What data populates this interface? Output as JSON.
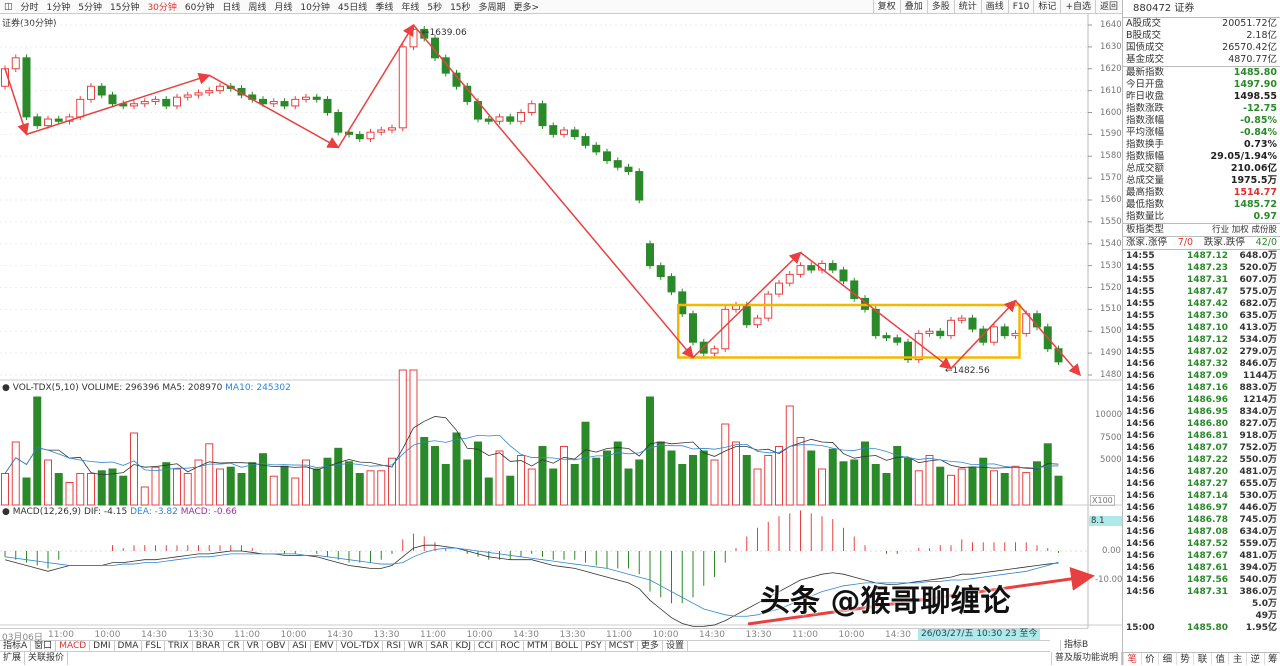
{
  "toolbar": {
    "periods": [
      "分时",
      "1分钟",
      "5分钟",
      "15分钟",
      "30分钟",
      "60分钟",
      "日线",
      "周线",
      "月线",
      "10分钟",
      "45日线",
      "季线",
      "年线",
      "5秒",
      "15秒",
      "多周期",
      "更多>"
    ],
    "active": "30分钟",
    "right": [
      "复权",
      "叠加",
      "多股",
      "统计",
      "画线",
      "F10",
      "标记",
      "+自选",
      "返回"
    ]
  },
  "chart_title": "证券(30分钟)",
  "price_axis": {
    "ticks": [
      1640,
      1630,
      1620,
      1610,
      1600,
      1590,
      1580,
      1570,
      1560,
      1550,
      1540,
      1530,
      1520,
      1510,
      1500,
      1490,
      1480
    ]
  },
  "annotations": {
    "high_label": "1639.06",
    "low_label": "1482.56",
    "colors": {
      "arrow": "#e84040",
      "box": "#f5b800",
      "up": "#e84040",
      "down": "#2a8a2a"
    }
  },
  "volume": {
    "header": "VOL-TDX(5,10) VOLUME: 296396  MA5: 208970",
    "ma10": "MA10: 245302",
    "ticks": [
      "10000",
      "7500",
      "5000"
    ],
    "unit": "X100"
  },
  "macd": {
    "name": "MACD(12,26,9)",
    "dif": "DIF: -4.15",
    "dea": "DEA: -3.82",
    "macd": "MACD: -0.66",
    "ticks": [
      "0.00",
      "-10.00"
    ],
    "cursor_value": "8.1"
  },
  "chart_data": {
    "type": "candlestick",
    "ylim": [
      1480,
      1640
    ],
    "open": [
      1612,
      1620,
      1625,
      1598,
      1594,
      1597,
      1596,
      1598,
      1606,
      1612,
      1608,
      1604,
      1603,
      1604,
      1605,
      1606,
      1603,
      1607,
      1608,
      1609,
      1610,
      1612,
      1611,
      1608,
      1606,
      1604,
      1605,
      1603,
      1606,
      1607,
      1606,
      1600,
      1591,
      1590,
      1588,
      1591,
      1592,
      1593,
      1630,
      1638,
      1634,
      1625,
      1618,
      1612,
      1605,
      1597,
      1596,
      1598,
      1596,
      1600,
      1604,
      1594,
      1590,
      1592,
      1589,
      1585,
      1582,
      1578,
      1575,
      1573,
      1540,
      1530,
      1525,
      1518,
      1508,
      1495,
      1490,
      1492,
      1510,
      1512,
      1503,
      1506,
      1517,
      1522,
      1526,
      1530,
      1528,
      1531,
      1528,
      1523,
      1515,
      1510,
      1498,
      1497,
      1495,
      1487,
      1499,
      1500,
      1498,
      1505,
      1506,
      1501,
      1495,
      1502,
      1498,
      1499,
      1508,
      1502,
      1492
    ],
    "close": [
      1620,
      1625,
      1598,
      1594,
      1597,
      1596,
      1598,
      1606,
      1612,
      1608,
      1604,
      1603,
      1604,
      1605,
      1606,
      1603,
      1607,
      1608,
      1609,
      1610,
      1612,
      1611,
      1608,
      1606,
      1604,
      1605,
      1603,
      1606,
      1607,
      1606,
      1600,
      1591,
      1590,
      1588,
      1591,
      1592,
      1593,
      1630,
      1638,
      1634,
      1625,
      1618,
      1612,
      1605,
      1597,
      1596,
      1598,
      1596,
      1600,
      1604,
      1594,
      1590,
      1592,
      1589,
      1585,
      1582,
      1578,
      1575,
      1573,
      1560,
      1530,
      1525,
      1518,
      1508,
      1495,
      1490,
      1492,
      1510,
      1512,
      1503,
      1506,
      1517,
      1522,
      1526,
      1530,
      1528,
      1531,
      1528,
      1523,
      1515,
      1510,
      1498,
      1497,
      1495,
      1487,
      1499,
      1500,
      1498,
      1505,
      1506,
      1501,
      1495,
      1502,
      1498,
      1499,
      1508,
      1502,
      1492,
      1486
    ],
    "volume": [
      3500,
      7000,
      3000,
      12000,
      5000,
      3500,
      2500,
      3500,
      3500,
      3800,
      4000,
      3200,
      8000,
      2000,
      4200,
      4700,
      4000,
      3500,
      5000,
      6800,
      4000,
      4200,
      3500,
      4700,
      5700,
      3200,
      4300,
      3000,
      5000,
      4000,
      5200,
      6300,
      4800,
      3500,
      3800,
      3800,
      5200,
      15000,
      15000,
      7500,
      6500,
      4500,
      8000,
      5000,
      7000,
      3000,
      6000,
      3200,
      5500,
      4000,
      6500,
      4000,
      6500,
      4500,
      9200,
      5200,
      6000,
      7000,
      4000,
      5000,
      12000,
      7000,
      6000,
      4500,
      5500,
      6000,
      5000,
      9000,
      7000,
      5500,
      4000,
      5500,
      6500,
      11000,
      7500,
      6000,
      4000,
      6200,
      4800,
      5000,
      7000,
      4500,
      3500,
      6500,
      5200,
      3800,
      5500,
      4200,
      3300,
      4000,
      4200,
      5200,
      3800,
      3500,
      4300,
      3600,
      4800,
      6800,
      3200
    ],
    "dif": [
      -3,
      -4,
      -5,
      -6,
      -7,
      -6,
      -5,
      -5,
      -5,
      -5,
      -4,
      -4,
      -3.5,
      -3,
      -3,
      -2.5,
      -2,
      -1.5,
      -1,
      -1,
      -0.5,
      0,
      0,
      -0.5,
      -1,
      -1,
      -1.5,
      -1.5,
      -1.5,
      -2,
      -3,
      -4,
      -5,
      -5.5,
      -6,
      -6,
      -5,
      -2,
      1,
      2,
      2,
      1.5,
      1,
      0,
      -1,
      -2,
      -2.5,
      -3,
      -3,
      -3,
      -4,
      -5,
      -5.5,
      -6,
      -7,
      -8,
      -9,
      -10,
      -11,
      -13,
      -17,
      -20,
      -23,
      -25,
      -26,
      -26,
      -25.5,
      -24,
      -22,
      -20,
      -18,
      -16,
      -14,
      -12,
      -10,
      -9,
      -8,
      -7.5,
      -8,
      -9,
      -10,
      -11,
      -11.5,
      -11.5,
      -11,
      -10.5,
      -10,
      -9.5,
      -9,
      -8,
      -8,
      -7.5,
      -7,
      -6.5,
      -6,
      -5.5,
      -5,
      -4.5,
      -4.15
    ],
    "dea": [
      -2,
      -2.5,
      -3,
      -3.5,
      -4,
      -4.5,
      -5,
      -5,
      -5,
      -5,
      -5,
      -4.5,
      -4.5,
      -4,
      -4,
      -3.5,
      -3,
      -2.5,
      -2,
      -2,
      -1.5,
      -1,
      -1,
      -1,
      -1,
      -1,
      -1,
      -1,
      -1.5,
      -1.5,
      -2,
      -2.5,
      -3,
      -3.5,
      -4,
      -4.5,
      -4.5,
      -4,
      -2,
      -0.5,
      0.5,
      1,
      1,
      0.5,
      0,
      -0.5,
      -1,
      -1.5,
      -2,
      -2.5,
      -3,
      -3.5,
      -4,
      -4.5,
      -5,
      -5.5,
      -6,
      -7,
      -8,
      -9,
      -10,
      -12,
      -14,
      -16,
      -18,
      -20,
      -21,
      -22,
      -22.5,
      -22.5,
      -22,
      -21,
      -20,
      -18.5,
      -17,
      -15.5,
      -14,
      -13,
      -12,
      -11.5,
      -11,
      -11,
      -11,
      -11,
      -11,
      -11,
      -10.5,
      -10.5,
      -10,
      -10,
      -9.5,
      -9,
      -8.5,
      -8,
      -7.5,
      -7,
      -6,
      -5,
      -3.82
    ],
    "trend_path": [
      [
        0,
        1620
      ],
      [
        2,
        1590
      ],
      [
        19,
        1617
      ],
      [
        31,
        1584
      ],
      [
        38,
        1640
      ],
      [
        64,
        1488
      ],
      [
        74,
        1536
      ],
      [
        88,
        1483
      ],
      [
        94,
        1514
      ],
      [
        100,
        1480
      ]
    ],
    "range_box": {
      "from": 63,
      "to": 94,
      "low": 1488,
      "high": 1512
    }
  },
  "panel": {
    "title": "880472 证券",
    "turnover": [
      {
        "l": "A股成交",
        "v": "20051.72亿"
      },
      {
        "l": "B股成交",
        "v": "2.18亿"
      },
      {
        "l": "国债成交",
        "v": "26570.42亿"
      },
      {
        "l": "基金成交",
        "v": "4870.77亿"
      }
    ],
    "stats": [
      {
        "l": "最新指数",
        "v": "1485.80",
        "c": "#2a8a2a"
      },
      {
        "l": "今日开盘",
        "v": "1497.90",
        "c": "#2a8a2a"
      },
      {
        "l": "昨日收盘",
        "v": "1498.55",
        "c": "#222"
      },
      {
        "l": "指数涨跌",
        "v": "-12.75",
        "c": "#2a8a2a"
      },
      {
        "l": "指数涨幅",
        "v": "-0.85%",
        "c": "#2a8a2a"
      },
      {
        "l": "平均涨幅",
        "v": "-0.84%",
        "c": "#2a8a2a"
      },
      {
        "l": "指数换手",
        "v": "0.73%",
        "c": "#222"
      },
      {
        "l": "指数振幅",
        "v": "29.05/1.94%",
        "c": "#222"
      },
      {
        "l": "总成交额",
        "v": "210.06亿",
        "c": "#222"
      },
      {
        "l": "总成交量",
        "v": "1975.5万",
        "c": "#222"
      },
      {
        "l": "最高指数",
        "v": "1514.77",
        "c": "#e03030"
      },
      {
        "l": "最低指数",
        "v": "1485.72",
        "c": "#2a8a2a"
      },
      {
        "l": "指数量比",
        "v": "0.97",
        "c": "#2a8a2a"
      }
    ],
    "board_type": {
      "l": "板指类型",
      "v": "行业 加权 成份股"
    },
    "updown": {
      "up_l": "涨家.涨停",
      "up_v": "7/0",
      "down_l": "跌家.跌停",
      "down_v": "42/0"
    },
    "ticks": [
      [
        "14:55",
        "1487.12",
        "648.0万"
      ],
      [
        "14:55",
        "1487.23",
        "520.0万"
      ],
      [
        "14:55",
        "1487.31",
        "607.0万"
      ],
      [
        "14:55",
        "1487.47",
        "575.0万"
      ],
      [
        "14:55",
        "1487.42",
        "682.0万"
      ],
      [
        "14:55",
        "1487.30",
        "635.0万"
      ],
      [
        "14:55",
        "1487.10",
        "413.0万"
      ],
      [
        "14:55",
        "1487.12",
        "534.0万"
      ],
      [
        "14:55",
        "1487.02",
        "279.0万"
      ],
      [
        "14:56",
        "1487.32",
        "846.0万"
      ],
      [
        "14:56",
        "1487.09",
        "1144万"
      ],
      [
        "14:56",
        "1487.16",
        "883.0万"
      ],
      [
        "14:56",
        "1486.96",
        "1214万"
      ],
      [
        "14:56",
        "1486.95",
        "834.0万"
      ],
      [
        "14:56",
        "1486.80",
        "827.0万"
      ],
      [
        "14:56",
        "1486.81",
        "918.0万"
      ],
      [
        "14:56",
        "1487.07",
        "752.0万"
      ],
      [
        "14:56",
        "1487.22",
        "550.0万"
      ],
      [
        "14:56",
        "1487.20",
        "481.0万"
      ],
      [
        "14:56",
        "1487.27",
        "655.0万"
      ],
      [
        "14:56",
        "1487.14",
        "530.0万"
      ],
      [
        "14:56",
        "1486.97",
        "446.0万"
      ],
      [
        "14:56",
        "1486.78",
        "745.0万"
      ],
      [
        "14:56",
        "1487.08",
        "634.0万"
      ],
      [
        "14:56",
        "1487.52",
        "559.0万"
      ],
      [
        "14:56",
        "1487.67",
        "481.0万"
      ],
      [
        "14:56",
        "1487.61",
        "394.0万"
      ],
      [
        "14:56",
        "1487.56",
        "540.0万"
      ],
      [
        "14:56",
        "1487.31",
        "386.0万"
      ],
      [
        "",
        "",
        "5.0万"
      ],
      [
        "",
        "",
        "49万"
      ],
      [
        "15:00",
        "1485.80",
        "1.95亿"
      ]
    ],
    "tabs": [
      "笔",
      "价",
      "细",
      "势",
      "联",
      "值",
      "主",
      "逆",
      "筹"
    ],
    "active_tab": "笔"
  },
  "time_axis": [
    "03月06日",
    "11:00",
    "10:00",
    "14:30",
    "13:30",
    "11:00",
    "10:00",
    "14:30",
    "13:30",
    "11:00",
    "10:00",
    "14:30",
    "13:30",
    "11:00",
    "10:00",
    "14:30",
    "13:30",
    "11:00",
    "10:00",
    "14:30"
  ],
  "cursor_time": "26/03/27/五 10:30 23 至今",
  "indicator_tabs": [
    "指标A",
    "窗口",
    "MACD",
    "DMI",
    "DMA",
    "FSL",
    "TRIX",
    "BRAR",
    "CR",
    "VR",
    "OBV",
    "ASI",
    "EMV",
    "VOL-TDX",
    "RSI",
    "WR",
    "SAR",
    "KDJ",
    "CCI",
    "ROC",
    "MTM",
    "BOLL",
    "PSY",
    "MCST",
    "更多",
    "设置"
  ],
  "active_indicator": "MACD",
  "indicator_b": "指标B",
  "bottom": {
    "expand": "扩展",
    "related": "关联报价",
    "help": "普及版功能说明"
  },
  "watermark": "头条 @猴哥聊缠论"
}
